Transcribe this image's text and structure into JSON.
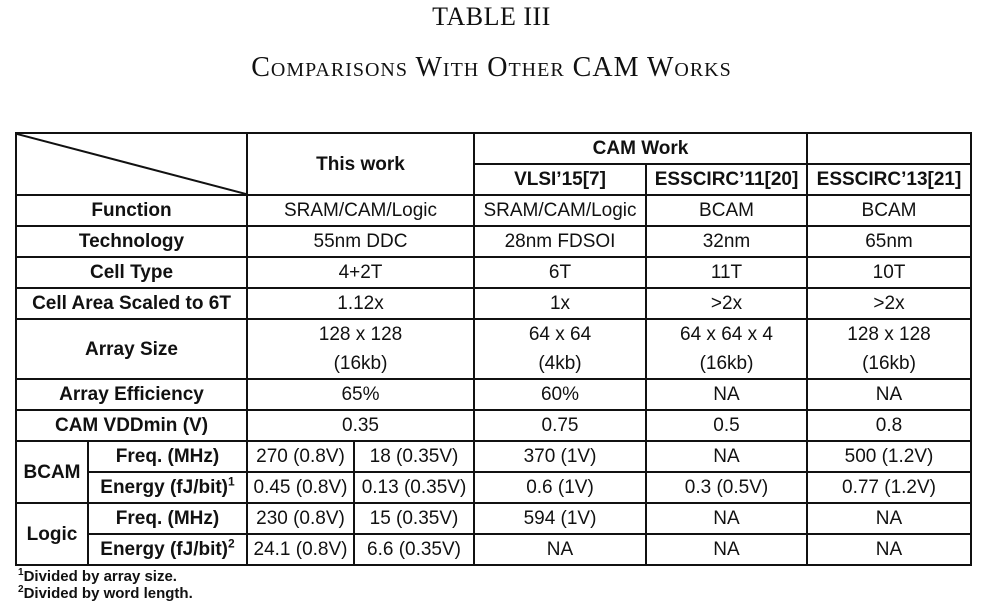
{
  "title": "TABLE III",
  "caption": "Comparisons With Other CAM Works",
  "table": {
    "this_work": "This work",
    "cam_work": "CAM Work",
    "refs": [
      "VLSI’15[7]",
      "ESSCIRC’11[20]",
      "ESSCIRC’13[21]"
    ],
    "rows": {
      "function": {
        "label": "Function",
        "values": [
          "SRAM/CAM/Logic",
          "SRAM/CAM/Logic",
          "BCAM",
          "BCAM"
        ]
      },
      "technology": {
        "label": "Technology",
        "values": [
          "55nm DDC",
          "28nm FDSOI",
          "32nm",
          "65nm"
        ]
      },
      "cell_type": {
        "label": "Cell Type",
        "values": [
          "4+2T",
          "6T",
          "11T",
          "10T"
        ]
      },
      "cell_area": {
        "label": "Cell Area Scaled to 6T",
        "values": [
          "1.12x",
          "1x",
          ">2x",
          ">2x"
        ]
      },
      "array_size": {
        "label": "Array Size",
        "line1": [
          "128 x 128",
          "64 x 64",
          "64 x 64 x 4",
          "128 x 128"
        ],
        "line2": [
          "(16kb)",
          "(4kb)",
          "(16kb)",
          "(16kb)"
        ]
      },
      "array_eff": {
        "label": "Array Efficiency",
        "values": [
          "65%",
          "60%",
          "NA",
          "NA"
        ]
      },
      "vddmin": {
        "label": "CAM VDDmin (V)",
        "values": [
          "0.35",
          "0.75",
          "0.5",
          "0.8"
        ]
      }
    },
    "bcam": {
      "label": "BCAM",
      "freq": {
        "label": "Freq. (MHz)",
        "this_a": "270 (0.8V)",
        "this_b": "18 (0.35V)",
        "values": [
          "370 (1V)",
          "NA",
          "500 (1.2V)"
        ]
      },
      "energy": {
        "label": "Energy  (fJ/bit)",
        "sup": "1",
        "this_a": "0.45 (0.8V)",
        "this_b": "0.13 (0.35V)",
        "values": [
          "0.6 (1V)",
          "0.3 (0.5V)",
          "0.77 (1.2V)"
        ]
      }
    },
    "logic": {
      "label": "Logic",
      "freq": {
        "label": "Freq. (MHz)",
        "this_a": "230 (0.8V)",
        "this_b": "15 (0.35V)",
        "values": [
          "594 (1V)",
          "NA",
          "NA"
        ]
      },
      "energy": {
        "label": "Energy  (fJ/bit)",
        "sup": "2",
        "this_a": "24.1 (0.8V)",
        "this_b": "6.6 (0.35V)",
        "values": [
          "NA",
          "NA",
          "NA"
        ]
      }
    }
  },
  "footnotes": [
    {
      "mark": "1",
      "text": "Divided by array size."
    },
    {
      "mark": "2",
      "text": "Divided by word length."
    }
  ]
}
